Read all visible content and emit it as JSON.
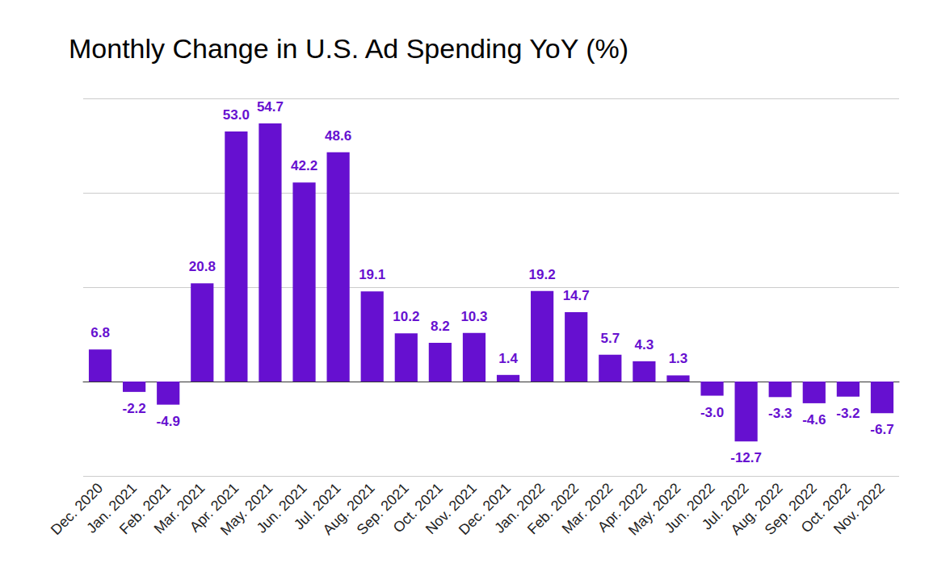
{
  "chart_data": {
    "type": "bar",
    "title": "Monthly Change in U.S. Ad Spending YoY (%)",
    "categories": [
      "Dec. 2020",
      "Jan. 2021",
      "Feb. 2021",
      "Mar. 2021",
      "Apr. 2021",
      "May. 2021",
      "Jun. 2021",
      "Jul. 2021",
      "Aug. 2021",
      "Sep. 2021",
      "Oct. 2021",
      "Nov. 2021",
      "Dec. 2021",
      "Jan. 2022",
      "Feb. 2022",
      "Mar. 2022",
      "Apr. 2022",
      "May. 2022",
      "Jun. 2022",
      "Jul. 2022",
      "Aug. 2022",
      "Sep. 2022",
      "Oct. 2022",
      "Nov. 2022"
    ],
    "values": [
      6.8,
      -2.2,
      -4.9,
      20.8,
      53.0,
      54.7,
      42.2,
      48.6,
      19.1,
      10.2,
      8.2,
      10.3,
      1.4,
      19.2,
      14.7,
      5.7,
      4.3,
      1.3,
      -3.0,
      -12.7,
      -3.3,
      -4.6,
      -3.2,
      -6.7
    ],
    "value_labels": [
      "6.8",
      "-2.2",
      "-4.9",
      "20.8",
      "53.0",
      "54.7",
      "42.2",
      "48.6",
      "19.1",
      "10.2",
      "8.2",
      "10.3",
      "1.4",
      "19.2",
      "14.7",
      "5.7",
      "4.3",
      "1.3",
      "-3.0",
      "-12.7",
      "-3.3",
      "-4.6",
      "-3.2",
      "-6.7"
    ],
    "color": "#6610d0",
    "ylim": [
      -20,
      60
    ],
    "yticks": [
      -20,
      0,
      20,
      40,
      60
    ],
    "grid": true,
    "data_labels": true,
    "tick_labels": "x"
  }
}
